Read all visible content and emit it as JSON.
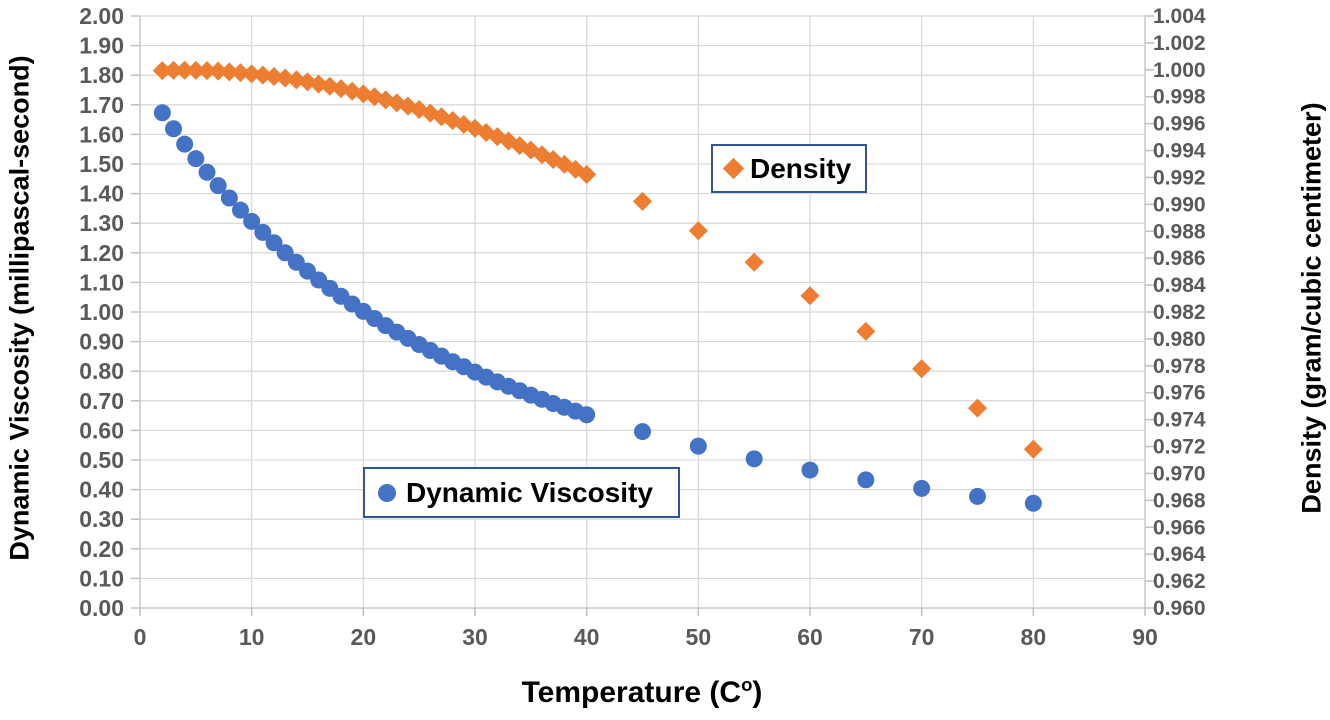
{
  "chart_data": {
    "type": "scatter",
    "title": "",
    "xlabel_prefix": "Temperature (C",
    "xlabel_sup": "o",
    "xlabel_suffix": ")",
    "ylabel_left": "Dynamic Viscosity (millipascal-second)",
    "ylabel_right": "Density (gram/cubic centimeter)",
    "xlim": [
      0,
      90
    ],
    "x_tick_labels": [
      "0",
      "10",
      "20",
      "30",
      "40",
      "50",
      "60",
      "70",
      "80",
      "90"
    ],
    "ylim_left": [
      0.0,
      2.0
    ],
    "y_left_tick_labels": [
      "0.00",
      "0.10",
      "0.20",
      "0.30",
      "0.40",
      "0.50",
      "0.60",
      "0.70",
      "0.80",
      "0.90",
      "1.00",
      "1.10",
      "1.20",
      "1.30",
      "1.40",
      "1.50",
      "1.60",
      "1.70",
      "1.80",
      "1.90",
      "2.00"
    ],
    "ylim_right": [
      0.96,
      1.004
    ],
    "y_right_tick_labels": [
      "0.960",
      "0.962",
      "0.964",
      "0.966",
      "0.968",
      "0.970",
      "0.972",
      "0.974",
      "0.976",
      "0.978",
      "0.980",
      "0.982",
      "0.984",
      "0.986",
      "0.988",
      "0.990",
      "0.992",
      "0.994",
      "0.996",
      "0.998",
      "1.000",
      "1.002",
      "1.004"
    ],
    "grid": true,
    "legend_position": "floating",
    "x": [
      2,
      3,
      4,
      5,
      6,
      7,
      8,
      9,
      10,
      11,
      12,
      13,
      14,
      15,
      16,
      17,
      18,
      19,
      20,
      21,
      22,
      23,
      24,
      25,
      26,
      27,
      28,
      29,
      30,
      31,
      32,
      33,
      34,
      35,
      36,
      37,
      38,
      39,
      40,
      45,
      50,
      55,
      60,
      65,
      70,
      75,
      80
    ],
    "series": [
      {
        "name": "Dynamic Viscosity",
        "axis": "left",
        "marker": "circle",
        "color": "#4472C4",
        "values": [
          1.673,
          1.619,
          1.567,
          1.518,
          1.472,
          1.427,
          1.385,
          1.344,
          1.306,
          1.269,
          1.234,
          1.2,
          1.168,
          1.138,
          1.108,
          1.08,
          1.053,
          1.027,
          1.002,
          0.978,
          0.954,
          0.932,
          0.911,
          0.89,
          0.87,
          0.851,
          0.832,
          0.815,
          0.797,
          0.78,
          0.764,
          0.749,
          0.734,
          0.719,
          0.705,
          0.691,
          0.678,
          0.665,
          0.653,
          0.596,
          0.547,
          0.504,
          0.466,
          0.433,
          0.404,
          0.377,
          0.354
        ]
      },
      {
        "name": "Density",
        "axis": "right",
        "marker": "diamond",
        "color": "#ED7D31",
        "values": [
          0.99994,
          0.99996,
          0.99997,
          0.99996,
          0.99994,
          0.9999,
          0.99985,
          0.99978,
          0.9997,
          0.99961,
          0.9995,
          0.99938,
          0.99925,
          0.9991,
          0.99894,
          0.99878,
          0.9986,
          0.99841,
          0.99821,
          0.998,
          0.99777,
          0.99754,
          0.9973,
          0.99705,
          0.99678,
          0.99651,
          0.99623,
          0.99594,
          0.99565,
          0.99534,
          0.99503,
          0.99471,
          0.99437,
          0.99403,
          0.99369,
          0.99333,
          0.99297,
          0.9926,
          0.99222,
          0.99022,
          0.98804,
          0.9857,
          0.98321,
          0.98056,
          0.97778,
          0.97486,
          0.9718
        ]
      }
    ],
    "legend": {
      "density_label": "Density",
      "viscosity_label": "Dynamic Viscosity"
    },
    "colors": {
      "tick_label": "#595959",
      "gridline": "#D9D9D9",
      "axis_line": "#BFBFBF",
      "axis_title": "#000000",
      "legend_border": "#2F5597",
      "legend_bg": "#FFFFFF",
      "background": "#FFFFFF"
    }
  }
}
